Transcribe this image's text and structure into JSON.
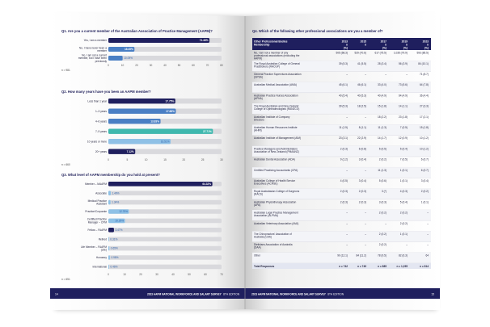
{
  "spread": {
    "footer_title": "2023 AAPM NATIONAL WORKFORCE AND SALARY SURVEY",
    "footer_edition": "8TH EDITION",
    "left_page_number": "14",
    "right_page_number": "15"
  },
  "chart_data": [
    {
      "type": "bar",
      "title": "Q1. Are you a current member of the Australian Association of Practice Management (AAPM)?",
      "categories": [
        "Yes, I am a member",
        "No, I have never been a member",
        "No, I am not a current member, but I have been previously"
      ],
      "values": [
        71.46,
        18.45,
        10.09
      ],
      "value_labels": [
        "71.46%",
        "18.45%",
        "10.09%"
      ],
      "xlim": [
        0,
        80
      ],
      "x_ticks": [
        "0",
        "10",
        "20",
        "30",
        "40",
        "50",
        "60",
        "70",
        "80"
      ],
      "note": "n = 981"
    },
    {
      "type": "bar",
      "title": "Q2. How many years have you been an AAPM member?",
      "categories": [
        "Less than 1 year",
        "1–3 years",
        "4–6 years",
        "7–9 years",
        "10 years or more",
        "20+ years"
      ],
      "values": [
        17.75,
        17.88,
        13.83,
        27.71,
        16.51,
        7.12
      ],
      "value_labels": [
        "17.75%",
        "17.88%",
        "13.83%",
        "27.71%",
        "16.51%",
        "7.12%"
      ],
      "xlim": [
        0,
        30
      ],
      "x_ticks": [
        "0",
        "5",
        "10",
        "15",
        "20",
        "25",
        "30"
      ],
      "note": "n = 660"
    },
    {
      "type": "bar",
      "title": "Q3. What level of AAPM membership do you hold at present?",
      "categories": [
        "Member – MAAPM",
        "Associate",
        "Medical Practice Assistant",
        "Practice/Corporate",
        "Certified Practice Manager – CPM",
        "Fellow – FAAPM",
        "Retired",
        "Life Member – FAAPM (Life)",
        "Honorary",
        "International"
      ],
      "values": [
        64.32,
        1.49,
        1.34,
        12.75,
        10.29,
        3.47,
        0.31,
        0.65,
        0.98,
        0.46
      ],
      "value_labels": [
        "64.32%",
        "1.49%",
        "1.34%",
        "12.75%",
        "10.29%",
        "3.47%",
        "0.31%",
        "0.65%",
        "0.98%",
        "0.46%"
      ],
      "xlim": [
        0,
        70
      ],
      "x_ticks": [
        "0",
        "10",
        "20",
        "30",
        "40",
        "50",
        "60",
        "70"
      ],
      "note": "n = 651"
    },
    {
      "type": "table",
      "title": "Q4. Which of the following other professional associations are you a member of?",
      "columns": [
        "Other Professional Bodies Membership",
        "2013 n (%)",
        "2015 n",
        "2017 n (%)",
        "2019 n (%)",
        "2023 n (%)"
      ],
      "rows": [
        [
          "No, I am not a member of any professional associations (excluding the AAPM)",
          "505 (68.3)",
          "529 (70.6)",
          "617 (75.5)",
          "1,035 (79.9)",
          "593 (85.5)"
        ],
        [
          "The Royal Australian College of General Practitioners (RACGP)",
          "39 (5.3)",
          "41 (5.5)",
          "28 (3.4)",
          "56 (3.9)",
          "84 (10.1)"
        ],
        [
          "General Practice Supervisors Association (GPSA)",
          "–",
          "–",
          "–",
          "–",
          "71 (8.7)"
        ],
        [
          "Australian Medical Association (AMA)",
          "45 (6.1)",
          "46 (6.1)",
          "33 (4.0)",
          "73 (5.6)",
          "64 (7.8)"
        ],
        [
          "Australian Practice Nurses Association (APNA)",
          "40 (5.4)",
          "40 (5.3)",
          "40 (4.9)",
          "64 (4.9)",
          "36 (4.4)"
        ],
        [
          "The Royal Australian and New Zealand College of Ophthalmologists (RANZCO)",
          "39 (5.3)",
          "18 (2.5)",
          "15 (1.8)",
          "14 (1.1)",
          "27 (3.3)"
        ],
        [
          "Australian Institute of Company Directors",
          "–",
          "–",
          "18 (2.2)",
          "23 (1.8)",
          "17 (2.1)"
        ],
        [
          "Australian Human Resources Institute (AHRI)",
          "11 (1.5)",
          "8 (1.1)",
          "11 (1.3)",
          "7 (0.5)",
          "15 (1.8)"
        ],
        [
          "Australian Institute of Management (AIM)",
          "23 (3.1)",
          "22 (2.9)",
          "14 (1.7)",
          "12 (0.9)",
          "10 (1.2)"
        ],
        [
          "Practice Managers and Administrators Association of New Zealand (PMAANZ)",
          "2 (0.3)",
          "6 (0.8)",
          "5 (0.5)",
          "5 (0.4)",
          "10 (1.2)"
        ],
        [
          "Australian Dental Association (ADA)",
          "9 (1.2)",
          "3 (0.4)",
          "2 (0.2)",
          "7 (0.5)",
          "6 (0.7)"
        ],
        [
          "Certified Practicing Accountants (CPA)",
          "–",
          "–",
          "11 (1.3)",
          "1 (0.1)",
          "6 (0.7)"
        ],
        [
          "Australian College of Health Service Executives (ACHSE)",
          "4 (0.5)",
          "3 (0.4)",
          "5 (0.6)",
          "1 (0.1)",
          "3 (0.4)"
        ],
        [
          "Royal Australasian College of Surgeons (RACS)",
          "2 (0.3)",
          "2 (0.3)",
          "3 (*)",
          "4 (0.3)",
          "2 (0.2)"
        ],
        [
          "Australian Physiotherapy Association (APA)",
          "2 (0.3)",
          "2 (0.3)",
          "3 (0.3)",
          "5 (0.4)",
          "1 (0.1)"
        ],
        [
          "Australian Legal Practice Management Association (ALPMA)",
          "–",
          "–",
          "2 (0.2)",
          "2 (0.2)",
          "–"
        ],
        [
          "Australian Veterinary Association (AVA)",
          "–",
          "–",
          "–",
          "2 (0.2)",
          "–"
        ],
        [
          "The Chiropractors' Association of Australia (CAA)",
          "–",
          "–",
          "2 (0.2)",
          "1 (0.1)",
          "–"
        ],
        [
          "Dieticians Association of Australia (DAA)",
          "–",
          "–",
          "2 (0.2)",
          "–",
          "–"
        ],
        [
          "Other",
          "90 (12.1)",
          "84 (11.2)",
          "78 (9.5)",
          "82 (6.3)",
          "64"
        ]
      ],
      "total_row": [
        "Total Responses",
        "n = 742",
        "n = 749",
        "n = 885",
        "n = 1,295",
        "n = 814"
      ]
    }
  ],
  "colors": {
    "navy": "#1f1f5e",
    "mid_blue": "#4a7fc4",
    "teal": "#3fb8ae",
    "light_blue": "#8fc1e6",
    "track": "#d9d9dd"
  }
}
